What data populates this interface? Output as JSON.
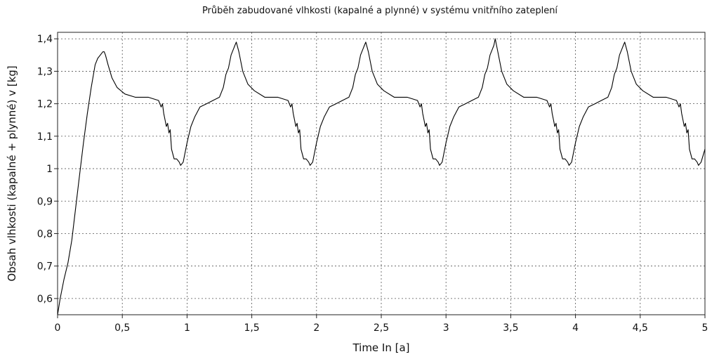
{
  "chart_data": {
    "type": "line",
    "title": "Průběh zabudované vlhkosti (kapalné a plynné) v systému vnitřního zateplení",
    "xlabel": "Time In [a]",
    "ylabel": "Obsah vlhkosti (kapalné + plynné) v [kg]",
    "xlim": [
      0,
      5
    ],
    "ylim": [
      0.55,
      1.42
    ],
    "grid": true,
    "x_ticks": [
      0,
      0.5,
      1,
      1.5,
      2,
      2.5,
      3,
      3.5,
      4,
      4.5,
      5
    ],
    "x_tick_labels": [
      "0",
      "0,5",
      "1",
      "1,5",
      "2",
      "2,5",
      "3",
      "3,5",
      "4",
      "4,5",
      "5"
    ],
    "y_ticks": [
      0.6,
      0.7,
      0.8,
      0.9,
      1.0,
      1.1,
      1.2,
      1.3,
      1.4
    ],
    "y_tick_labels": [
      "0,6",
      "0,7",
      "0,8",
      "0,9",
      "1",
      "1,1",
      "1,2",
      "1,3",
      "1,4"
    ],
    "series": [
      {
        "x": [
          0,
          0.02,
          0.05,
          0.08,
          0.11,
          0.14,
          0.17,
          0.2,
          0.23,
          0.26,
          0.29,
          0.31,
          0.33,
          0.35,
          0.36,
          0.37,
          0.39,
          0.42,
          0.46,
          0.52,
          0.6,
          0.7,
          0.78,
          0.8,
          0.81,
          0.82,
          0.83,
          0.84,
          0.85,
          0.86,
          0.87,
          0.88,
          0.9,
          0.92,
          0.94,
          0.95,
          0.97,
          1.0,
          1.03,
          1.06,
          1.1,
          1.15,
          1.2,
          1.25,
          1.28,
          1.3,
          1.32,
          1.34,
          1.36,
          1.37,
          1.38,
          1.4,
          1.43,
          1.47,
          1.52,
          1.6,
          1.7,
          1.78,
          1.8,
          1.81,
          1.82,
          1.83,
          1.84,
          1.85,
          1.86,
          1.87,
          1.88,
          1.9,
          1.92,
          1.94,
          1.95,
          1.97,
          2.0,
          2.03,
          2.06,
          2.1,
          2.15,
          2.2,
          2.25,
          2.28,
          2.3,
          2.32,
          2.34,
          2.36,
          2.37,
          2.38,
          2.4,
          2.43,
          2.47,
          2.52,
          2.6,
          2.7,
          2.78,
          2.8,
          2.81,
          2.82,
          2.83,
          2.84,
          2.85,
          2.86,
          2.87,
          2.88,
          2.9,
          2.92,
          2.94,
          2.95,
          2.97,
          3.0,
          3.03,
          3.06,
          3.1,
          3.15,
          3.2,
          3.25,
          3.28,
          3.3,
          3.32,
          3.34,
          3.36,
          3.37,
          3.38,
          3.4,
          3.43,
          3.47,
          3.52,
          3.6,
          3.7,
          3.78,
          3.8,
          3.81,
          3.82,
          3.83,
          3.84,
          3.85,
          3.86,
          3.87,
          3.88,
          3.9,
          3.92,
          3.94,
          3.95,
          3.97,
          4.0,
          4.03,
          4.06,
          4.1,
          4.15,
          4.2,
          4.25,
          4.28,
          4.3,
          4.32,
          4.34,
          4.36,
          4.37,
          4.38,
          4.4,
          4.43,
          4.47,
          4.52,
          4.6,
          4.7,
          4.78,
          4.8,
          4.81,
          4.82,
          4.83,
          4.84,
          4.85,
          4.86,
          4.87,
          4.88,
          4.9,
          4.92,
          4.94,
          4.95,
          4.97,
          5.0
        ],
        "values": [
          0.55,
          0.6,
          0.66,
          0.71,
          0.78,
          0.88,
          0.98,
          1.08,
          1.17,
          1.25,
          1.32,
          1.34,
          1.35,
          1.36,
          1.36,
          1.35,
          1.32,
          1.28,
          1.25,
          1.23,
          1.22,
          1.22,
          1.21,
          1.19,
          1.2,
          1.17,
          1.15,
          1.13,
          1.14,
          1.11,
          1.12,
          1.06,
          1.03,
          1.03,
          1.02,
          1.01,
          1.02,
          1.08,
          1.13,
          1.16,
          1.19,
          1.2,
          1.21,
          1.22,
          1.25,
          1.29,
          1.31,
          1.35,
          1.37,
          1.38,
          1.39,
          1.36,
          1.3,
          1.26,
          1.24,
          1.22,
          1.22,
          1.21,
          1.19,
          1.2,
          1.17,
          1.15,
          1.13,
          1.14,
          1.11,
          1.12,
          1.06,
          1.03,
          1.03,
          1.02,
          1.01,
          1.02,
          1.08,
          1.13,
          1.16,
          1.19,
          1.2,
          1.21,
          1.22,
          1.25,
          1.29,
          1.31,
          1.35,
          1.37,
          1.38,
          1.39,
          1.36,
          1.3,
          1.26,
          1.24,
          1.22,
          1.22,
          1.21,
          1.19,
          1.2,
          1.17,
          1.15,
          1.13,
          1.14,
          1.11,
          1.12,
          1.06,
          1.03,
          1.03,
          1.02,
          1.01,
          1.02,
          1.08,
          1.13,
          1.16,
          1.19,
          1.2,
          1.21,
          1.22,
          1.25,
          1.29,
          1.31,
          1.35,
          1.37,
          1.38,
          1.4,
          1.36,
          1.3,
          1.26,
          1.24,
          1.22,
          1.22,
          1.21,
          1.19,
          1.2,
          1.17,
          1.15,
          1.13,
          1.14,
          1.11,
          1.12,
          1.06,
          1.03,
          1.03,
          1.02,
          1.01,
          1.02,
          1.08,
          1.13,
          1.16,
          1.19,
          1.2,
          1.21,
          1.22,
          1.25,
          1.29,
          1.31,
          1.35,
          1.37,
          1.38,
          1.39,
          1.36,
          1.3,
          1.26,
          1.24,
          1.22,
          1.22,
          1.21,
          1.19,
          1.2,
          1.17,
          1.15,
          1.13,
          1.14,
          1.11,
          1.12,
          1.06,
          1.03,
          1.03,
          1.02,
          1.01,
          1.02,
          1.06
        ],
        "color": "#000000"
      }
    ]
  }
}
